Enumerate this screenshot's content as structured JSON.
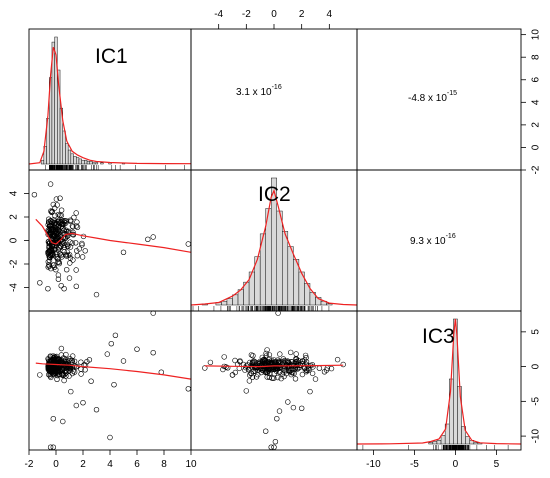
{
  "chart_data": {
    "type": "scatter",
    "subtype": "scatterplot-matrix",
    "variables": [
      "IC1",
      "IC2",
      "IC3"
    ],
    "diagonal": "histogram-with-density-and-rug",
    "lower": "scatter-with-smoother",
    "upper": "correlation-text",
    "line_color": "#ee2222",
    "axes": {
      "IC1": {
        "range": [
          -2,
          10
        ],
        "ticks": [
          -2,
          0,
          2,
          4,
          6,
          8,
          10
        ],
        "tick_side": "bottom"
      },
      "IC2": {
        "range": [
          -6,
          6
        ],
        "ticks": [
          -4,
          -2,
          0,
          2,
          4
        ],
        "tick_side": "top"
      },
      "IC3": {
        "range": [
          -12,
          8
        ],
        "ticks": [
          -10,
          -5,
          0,
          5
        ],
        "tick_side": "bottom"
      },
      "IC1_y": {
        "range": [
          -2,
          10.5
        ],
        "ticks": [
          -2,
          0,
          2,
          4,
          6,
          8,
          10
        ],
        "tick_side": "right"
      },
      "IC2_y": {
        "range": [
          -6,
          6
        ],
        "ticks": [
          -4,
          -2,
          0,
          2,
          4
        ],
        "tick_side": "left"
      },
      "IC3_y": {
        "range": [
          -12,
          8
        ],
        "ticks": [
          -10,
          -5,
          0,
          5
        ],
        "tick_side": "right"
      }
    },
    "correlations": [
      {
        "pair": [
          "IC1",
          "IC2"
        ],
        "mantissa": "3.1 x 10",
        "exponent": "-16"
      },
      {
        "pair": [
          "IC1",
          "IC3"
        ],
        "mantissa": "-4.8 x 10",
        "exponent": "-15"
      },
      {
        "pair": [
          "IC2",
          "IC3"
        ],
        "mantissa": "9.3 x 10",
        "exponent": "-16"
      }
    ],
    "histograms": {
      "IC1": {
        "bins": [
          [
            -1.0,
            3
          ],
          [
            -0.8,
            14
          ],
          [
            -0.6,
            36
          ],
          [
            -0.4,
            68
          ],
          [
            -0.2,
            96
          ],
          [
            0.0,
            100
          ],
          [
            0.2,
            74
          ],
          [
            0.4,
            44
          ],
          [
            0.6,
            26
          ],
          [
            0.8,
            16
          ],
          [
            1.0,
            11
          ],
          [
            1.2,
            8
          ],
          [
            1.4,
            6
          ],
          [
            1.6,
            5
          ],
          [
            1.8,
            4
          ],
          [
            2.0,
            3
          ],
          [
            2.2,
            3
          ],
          [
            2.4,
            2
          ],
          [
            2.6,
            2
          ],
          [
            2.8,
            1
          ],
          [
            3.0,
            1
          ],
          [
            3.4,
            1
          ],
          [
            4.0,
            1
          ],
          [
            5.0,
            1
          ]
        ],
        "bin_width": 0.2,
        "density": [
          [
            -2,
            0
          ],
          [
            -1.2,
            1
          ],
          [
            -0.9,
            10
          ],
          [
            -0.6,
            38
          ],
          [
            -0.4,
            70
          ],
          [
            -0.2,
            92
          ],
          [
            0.0,
            86
          ],
          [
            0.2,
            62
          ],
          [
            0.5,
            34
          ],
          [
            0.8,
            18
          ],
          [
            1.2,
            10
          ],
          [
            1.6,
            7
          ],
          [
            2.0,
            5
          ],
          [
            2.5,
            3
          ],
          [
            3.0,
            2
          ],
          [
            4.0,
            1.2
          ],
          [
            5.0,
            0.8
          ],
          [
            6.0,
            0.5
          ],
          [
            8.0,
            0.3
          ],
          [
            10,
            0.2
          ]
        ]
      },
      "IC2": {
        "bins": [
          [
            -5.0,
            1
          ],
          [
            -4.0,
            2
          ],
          [
            -3.6,
            3
          ],
          [
            -3.2,
            5
          ],
          [
            -2.8,
            8
          ],
          [
            -2.4,
            12
          ],
          [
            -2.0,
            18
          ],
          [
            -1.6,
            26
          ],
          [
            -1.2,
            38
          ],
          [
            -0.8,
            56
          ],
          [
            -0.4,
            76
          ],
          [
            0.0,
            100
          ],
          [
            0.4,
            74
          ],
          [
            0.8,
            58
          ],
          [
            1.2,
            46
          ],
          [
            1.6,
            36
          ],
          [
            2.0,
            26
          ],
          [
            2.4,
            17
          ],
          [
            2.8,
            10
          ],
          [
            3.2,
            6
          ],
          [
            3.6,
            3
          ],
          [
            4.0,
            1
          ]
        ],
        "bin_width": 0.4,
        "density": [
          [
            -6,
            0
          ],
          [
            -5,
            0.8
          ],
          [
            -4,
            2
          ],
          [
            -3,
            7
          ],
          [
            -2.4,
            12
          ],
          [
            -1.8,
            20
          ],
          [
            -1.2,
            36
          ],
          [
            -0.6,
            62
          ],
          [
            -0.2,
            85
          ],
          [
            0.0,
            90
          ],
          [
            0.3,
            78
          ],
          [
            0.8,
            56
          ],
          [
            1.4,
            40
          ],
          [
            2.0,
            25
          ],
          [
            2.6,
            13
          ],
          [
            3.2,
            5
          ],
          [
            4.0,
            1.5
          ],
          [
            5,
            0.4
          ],
          [
            6,
            0
          ]
        ]
      },
      "IC3": {
        "bins": [
          [
            -3.0,
            1
          ],
          [
            -2.5,
            2
          ],
          [
            -2.0,
            3
          ],
          [
            -1.5,
            7
          ],
          [
            -1.0,
            16
          ],
          [
            -0.5,
            52
          ],
          [
            0.0,
            100
          ],
          [
            0.5,
            46
          ],
          [
            1.0,
            14
          ],
          [
            1.5,
            6
          ],
          [
            2.0,
            3
          ],
          [
            2.5,
            1
          ],
          [
            3.0,
            1
          ]
        ],
        "bin_width": 0.5,
        "density": [
          [
            -12,
            0
          ],
          [
            -8,
            0.2
          ],
          [
            -4,
            0.8
          ],
          [
            -3,
            2
          ],
          [
            -2,
            4
          ],
          [
            -1.2,
            12
          ],
          [
            -0.6,
            42
          ],
          [
            -0.2,
            88
          ],
          [
            0.0,
            100
          ],
          [
            0.2,
            86
          ],
          [
            0.6,
            38
          ],
          [
            1.2,
            11
          ],
          [
            2,
            3
          ],
          [
            3,
            1
          ],
          [
            5,
            0.3
          ],
          [
            8,
            0
          ]
        ]
      }
    },
    "smoothers": {
      "IC2_vs_IC1": [
        [
          -1.5,
          1.8
        ],
        [
          -1.0,
          1.2
        ],
        [
          -0.6,
          0.4
        ],
        [
          -0.3,
          -0.2
        ],
        [
          0.0,
          -0.3
        ],
        [
          0.3,
          0.0
        ],
        [
          0.7,
          0.5
        ],
        [
          1.2,
          0.6
        ],
        [
          2.0,
          0.4
        ],
        [
          3.0,
          0.2
        ],
        [
          4.0,
          0.0
        ],
        [
          6.0,
          -0.3
        ],
        [
          8.0,
          -0.6
        ],
        [
          10.0,
          -1.0
        ]
      ],
      "IC3_vs_IC1": [
        [
          -1.5,
          0.5
        ],
        [
          -1.0,
          0.4
        ],
        [
          0.0,
          0.3
        ],
        [
          1.0,
          0.2
        ],
        [
          2.0,
          0.0
        ],
        [
          4.0,
          -0.3
        ],
        [
          6.0,
          -0.7
        ],
        [
          8.0,
          -1.2
        ],
        [
          10.0,
          -1.8
        ]
      ],
      "IC3_vs_IC2": [
        [
          -5.0,
          0.1
        ],
        [
          -3.0,
          0.05
        ],
        [
          -1.0,
          0.0
        ],
        [
          0.0,
          0.1
        ],
        [
          1.0,
          0.1
        ],
        [
          3.0,
          0.15
        ],
        [
          5.0,
          0.2
        ]
      ]
    },
    "outliers": {
      "IC2_vs_IC1": [
        [
          -1.2,
          -3.6
        ],
        [
          -0.6,
          -4.1
        ],
        [
          0.6,
          -4.1
        ],
        [
          1.5,
          -3.9
        ],
        [
          1.0,
          -3.2
        ],
        [
          3.0,
          -4.6
        ],
        [
          5.0,
          -1.0
        ],
        [
          6.8,
          0.1
        ],
        [
          7.2,
          0.3
        ],
        [
          9.8,
          -0.3
        ],
        [
          -0.4,
          4.8
        ],
        [
          -1.6,
          3.9
        ],
        [
          0.3,
          3.6
        ]
      ],
      "IC3_vs_IC1": [
        [
          -0.4,
          -11.6
        ],
        [
          -0.2,
          -11.6
        ],
        [
          0.5,
          -7.9
        ],
        [
          -0.2,
          -7.5
        ],
        [
          1.5,
          -5.6
        ],
        [
          2.0,
          -5.2
        ],
        [
          3.0,
          -6.2
        ],
        [
          4.0,
          -10.2
        ],
        [
          1.1,
          -3.6
        ],
        [
          7.2,
          7.7
        ],
        [
          4.1,
          3.3
        ],
        [
          4.4,
          4.5
        ],
        [
          6.0,
          2.5
        ],
        [
          7.2,
          2.0
        ],
        [
          9.8,
          -3.2
        ],
        [
          7.8,
          -0.8
        ],
        [
          5.0,
          0.8
        ],
        [
          3.8,
          1.8
        ],
        [
          2.6,
          -2.1
        ],
        [
          4.3,
          -2.6
        ],
        [
          -1.2,
          -1.2
        ],
        [
          0.4,
          2.6
        ],
        [
          0.6,
          -2.0
        ]
      ],
      "IC3_vs_IC2": [
        [
          -0.2,
          -11.6
        ],
        [
          0.0,
          -11.6
        ],
        [
          0.1,
          -10.8
        ],
        [
          0.2,
          -7.5
        ],
        [
          -0.6,
          -9.3
        ],
        [
          0.4,
          -6.4
        ],
        [
          1.0,
          -5.1
        ],
        [
          1.4,
          -5.9
        ],
        [
          2.0,
          -6.0
        ],
        [
          -2.0,
          -3.5
        ],
        [
          2.6,
          -3.6
        ],
        [
          0.3,
          7.7
        ],
        [
          -0.5,
          2.4
        ],
        [
          -3.0,
          -1.2
        ],
        [
          3.0,
          -1.8
        ],
        [
          -4.6,
          0.6
        ],
        [
          -5.0,
          -0.2
        ],
        [
          4.6,
          1.0
        ],
        [
          5.0,
          0.3
        ],
        [
          -3.6,
          1.4
        ]
      ]
    }
  }
}
